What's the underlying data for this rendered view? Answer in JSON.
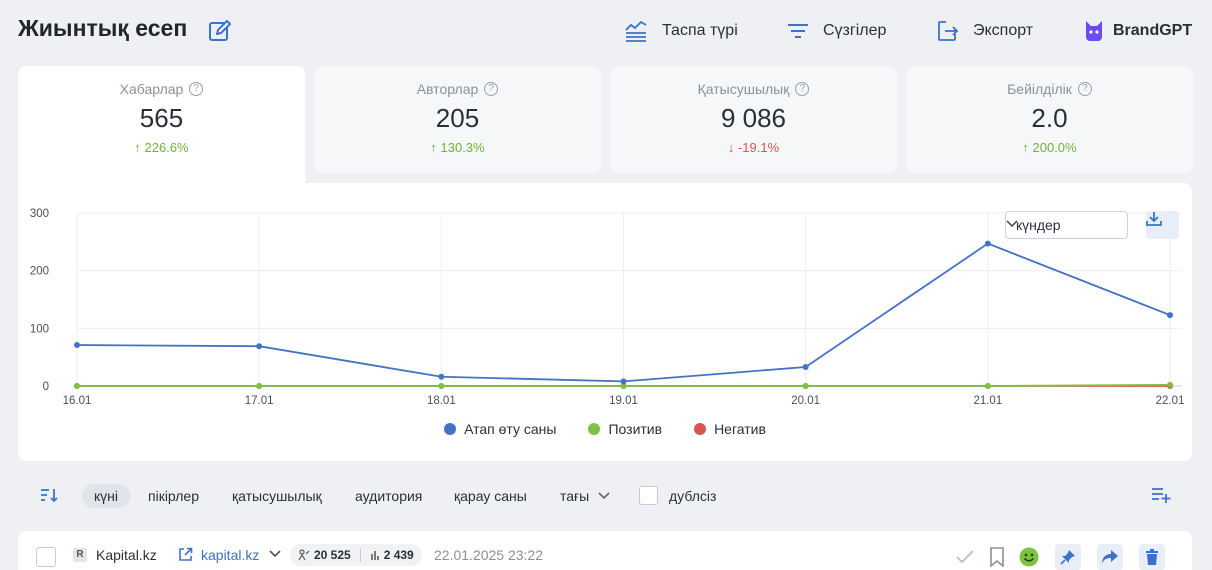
{
  "header": {
    "title": "Жиынтық есеп",
    "actions": {
      "feed_type": "Таспа түрі",
      "filters": "Сүзгілер",
      "export": "Экспорт",
      "brand": "BrandGPT"
    }
  },
  "metrics": [
    {
      "label": "Хабарлар",
      "value": "565",
      "delta": "↑ 226.6%",
      "trend": "up"
    },
    {
      "label": "Авторлар",
      "value": "205",
      "delta": "↑ 130.3%",
      "trend": "up"
    },
    {
      "label": "Қатысушылық",
      "value": "9 086",
      "delta": "↓ -19.1%",
      "trend": "down"
    },
    {
      "label": "Бейілділік",
      "value": "2.0",
      "delta": "↑ 200.0%",
      "trend": "up"
    }
  ],
  "chart_controls": {
    "period": "күндер"
  },
  "chart_data": {
    "type": "line",
    "x": [
      "16.01",
      "17.01",
      "18.01",
      "19.01",
      "20.01",
      "21.01",
      "22.01"
    ],
    "ylim": [
      0,
      300
    ],
    "yticks": [
      "300",
      "200",
      "100",
      "0"
    ],
    "ytick_values": [
      300,
      200,
      100,
      0
    ],
    "grid": true,
    "legend_position": "bottom-center",
    "series": [
      {
        "name": "Атап өту саны",
        "color": "#4472c4",
        "values": [
          71,
          69,
          16,
          8,
          33,
          247,
          123
        ]
      },
      {
        "name": "Позитив",
        "color": "#7cc142",
        "values": [
          0,
          0,
          0,
          0,
          0,
          0,
          2
        ]
      },
      {
        "name": "Негатив",
        "color": "#d9534f",
        "values": [
          0,
          0,
          0,
          0,
          0,
          0,
          0
        ]
      }
    ]
  },
  "sort": {
    "options": [
      "күні",
      "пікірлер",
      "қатысушылық",
      "аудитория",
      "қарау саны",
      "тағы"
    ],
    "duplicates_label": "дублсіз"
  },
  "post": {
    "source_icon": "R",
    "source_name": "Kapital.kz",
    "source_link": "kapital.kz",
    "audience": "20 525",
    "views": "2 439",
    "date": "22.01.2025 23:22"
  },
  "colors": {
    "accent": "#3b73c9",
    "up": "#6fb53e",
    "down": "#d9534f",
    "brand": "#6c4cf1",
    "positive_face": "#7cc142"
  }
}
